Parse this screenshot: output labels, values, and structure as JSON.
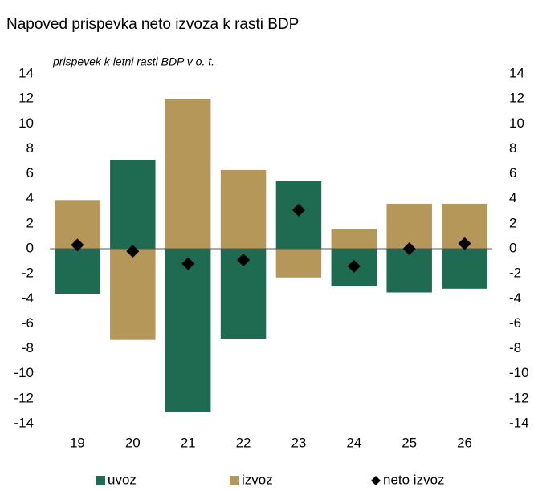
{
  "chart_data": {
    "type": "bar",
    "stacked": true,
    "title": "Napoved prispevka neto izvoza k rasti BDP",
    "subtitle": "prispevek k letni rasti BDP v o. t.",
    "categories": [
      "19",
      "20",
      "21",
      "22",
      "23",
      "24",
      "25",
      "26"
    ],
    "series": [
      {
        "name": "uvoz",
        "color": "#1e6b52",
        "type": "bar",
        "values": [
          -3.6,
          7.1,
          -13.1,
          -7.2,
          5.4,
          -3.0,
          -3.5,
          -3.2
        ]
      },
      {
        "name": "izvoz",
        "color": "#b5975a",
        "type": "bar",
        "values": [
          3.9,
          -7.3,
          12.0,
          6.3,
          -2.3,
          1.6,
          3.6,
          3.6
        ]
      },
      {
        "name": "neto izvoz",
        "color": "#000000",
        "type": "marker",
        "values": [
          0.3,
          -0.2,
          -1.2,
          -0.9,
          3.1,
          -1.4,
          0.0,
          0.4
        ]
      }
    ],
    "ylim": [
      -14,
      14
    ],
    "yticks": [
      -14,
      -12,
      -10,
      -8,
      -6,
      -4,
      -2,
      0,
      2,
      4,
      6,
      8,
      10,
      12,
      14
    ],
    "y2lim": [
      -14,
      14
    ],
    "y2ticks": [
      -14,
      -12,
      -10,
      -8,
      -6,
      -4,
      -2,
      0,
      2,
      4,
      6,
      8,
      10,
      12,
      14
    ],
    "legend": "bottom",
    "grid": false
  }
}
